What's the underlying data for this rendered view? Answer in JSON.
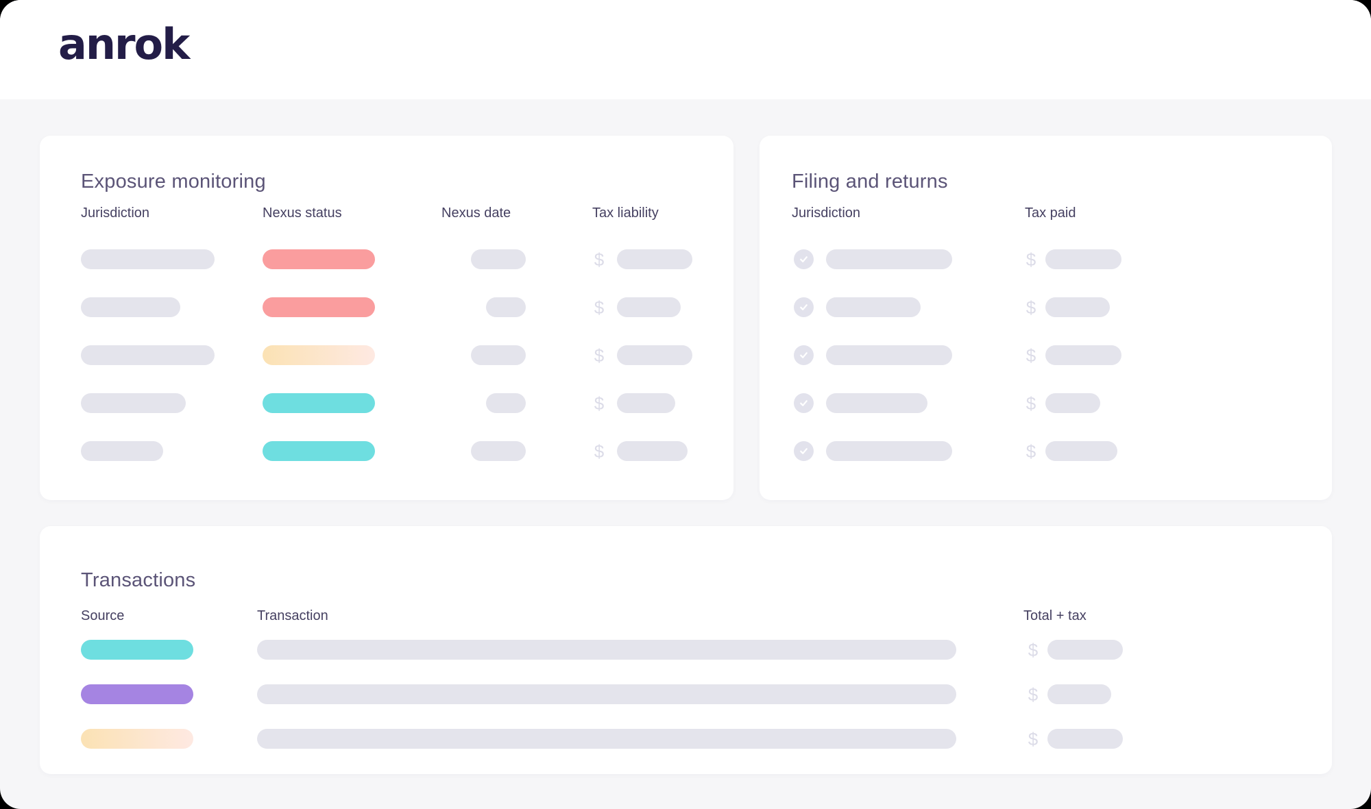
{
  "brand": {
    "logo_text": "anrok"
  },
  "colors": {
    "salmon": "#FA9D9E",
    "teal": "#6EDEE0",
    "purple": "#A584E2",
    "gradient_start": "#FBE2B4",
    "gradient_end": "#FEE9E2",
    "skeleton_gray": "#E4E4EC",
    "currency_gray": "#DCDCE8",
    "check_circle_gray": "#E2E2EC",
    "title_text": "#5B5477",
    "header_text": "#454061",
    "logo_text": "#231D47",
    "body_background": "#F6F6F8"
  },
  "exposure_card": {
    "title": "Exposure monitoring",
    "columns": {
      "jurisdiction": "Jurisdiction",
      "nexus_status": "Nexus status",
      "nexus_date": "Nexus date",
      "tax_liability": "Tax liability"
    },
    "currency_symbol": "$",
    "rows": [
      {
        "jurisdiction_width": 195,
        "status_fill": "salmon",
        "date_width": 80,
        "liability_width": 110
      },
      {
        "jurisdiction_width": 145,
        "status_fill": "salmon",
        "date_width": 58,
        "liability_width": 93
      },
      {
        "jurisdiction_width": 195,
        "status_fill": "gradient",
        "date_width": 80,
        "liability_width": 110
      },
      {
        "jurisdiction_width": 153,
        "status_fill": "teal",
        "date_width": 58,
        "liability_width": 85
      },
      {
        "jurisdiction_width": 120,
        "status_fill": "teal",
        "date_width": 80,
        "liability_width": 103
      }
    ]
  },
  "filing_card": {
    "title": "Filing and returns",
    "columns": {
      "jurisdiction": "Jurisdiction",
      "tax_paid": "Tax paid"
    },
    "currency_symbol": "$",
    "check_icon": "checkmark-circle",
    "rows": [
      {
        "jurisdiction_width": 184,
        "paid_width": 111
      },
      {
        "jurisdiction_width": 138,
        "paid_width": 94
      },
      {
        "jurisdiction_width": 184,
        "paid_width": 111
      },
      {
        "jurisdiction_width": 148,
        "paid_width": 80
      },
      {
        "jurisdiction_width": 184,
        "paid_width": 105
      }
    ]
  },
  "transactions_card": {
    "title": "Transactions",
    "columns": {
      "source": "Source",
      "transaction": "Transaction",
      "total_tax": "Total + tax"
    },
    "currency_symbol": "$",
    "rows": [
      {
        "source_fill": "teal",
        "transaction_width": 1020,
        "total_width": 110
      },
      {
        "source_fill": "purple",
        "transaction_width": 1020,
        "total_width": 93
      },
      {
        "source_fill": "gradient",
        "transaction_width": 1020,
        "total_width": 110
      }
    ]
  }
}
